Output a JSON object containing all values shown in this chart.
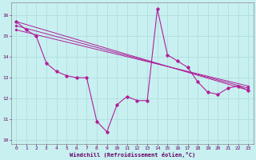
{
  "xlabel": "Windchill (Refroidissement éolien,°C)",
  "ylabel": "",
  "bg_color": "#c8f0f0",
  "grid_color": "#b0dede",
  "line_color": "#b0209a",
  "xlim": [
    -0.5,
    23.5
  ],
  "ylim": [
    9.8,
    16.6
  ],
  "yticks": [
    10,
    11,
    12,
    13,
    14,
    15,
    16
  ],
  "xticks": [
    0,
    1,
    2,
    3,
    4,
    5,
    6,
    7,
    8,
    9,
    10,
    11,
    12,
    13,
    14,
    15,
    16,
    17,
    18,
    19,
    20,
    21,
    22,
    23
  ],
  "series": [
    {
      "x": [
        0,
        1,
        2,
        3,
        4,
        5,
        6,
        7,
        8,
        9,
        10,
        11,
        12,
        13,
        14,
        15,
        16,
        17,
        18,
        19,
        20,
        21,
        22,
        23
      ],
      "y": [
        15.7,
        15.3,
        15.0,
        13.7,
        13.3,
        13.1,
        13.0,
        13.0,
        10.9,
        10.4,
        11.7,
        12.1,
        11.9,
        11.9,
        16.3,
        14.1,
        13.8,
        13.5,
        12.8,
        12.3,
        12.2,
        12.5,
        12.6,
        12.4
      ]
    },
    {
      "x": [
        0,
        23
      ],
      "y": [
        15.7,
        12.4
      ]
    },
    {
      "x": [
        0,
        23
      ],
      "y": [
        15.5,
        12.5
      ]
    },
    {
      "x": [
        0,
        23
      ],
      "y": [
        15.3,
        12.6
      ]
    }
  ]
}
